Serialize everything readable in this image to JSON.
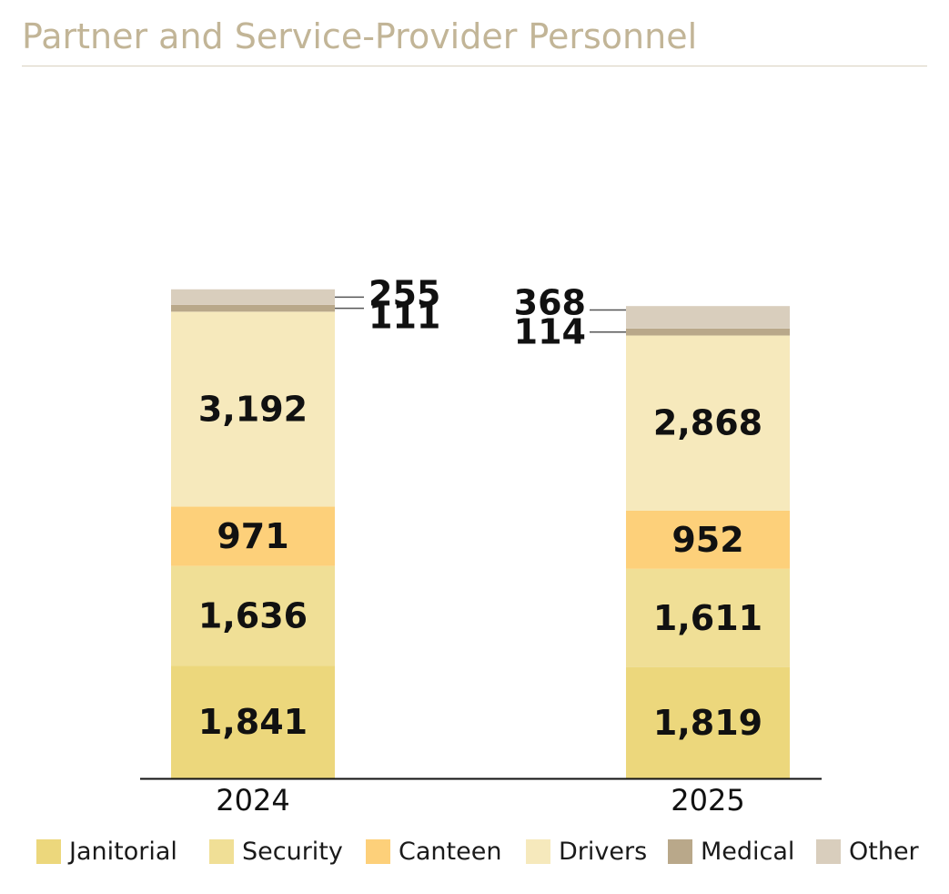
{
  "title": "Partner and Service-Provider Personnel",
  "chart_data": {
    "type": "bar",
    "stacked": true,
    "categories": [
      "2024",
      "2025"
    ],
    "series": [
      {
        "name": "Janitorial",
        "color": "#ecd77c",
        "values": [
          1841,
          1819
        ],
        "labels": [
          "1,841",
          "1,819"
        ]
      },
      {
        "name": "Security",
        "color": "#f0df96",
        "values": [
          1636,
          1611
        ],
        "labels": [
          "1,636",
          "1,611"
        ]
      },
      {
        "name": "Canteen",
        "color": "#fdd07a",
        "values": [
          971,
          952
        ],
        "labels": [
          "971",
          "952"
        ]
      },
      {
        "name": "Drivers",
        "color": "#f6e9bc",
        "values": [
          3192,
          2868
        ],
        "labels": [
          "3,192",
          "2,868"
        ]
      },
      {
        "name": "Medical",
        "color": "#b9a88a",
        "values": [
          111,
          114
        ],
        "labels": [
          "111",
          "114"
        ]
      },
      {
        "name": "Other",
        "color": "#d9cebd",
        "values": [
          255,
          368
        ],
        "labels": [
          "255",
          "368"
        ]
      }
    ],
    "legend_position": "bottom",
    "grid": false
  }
}
